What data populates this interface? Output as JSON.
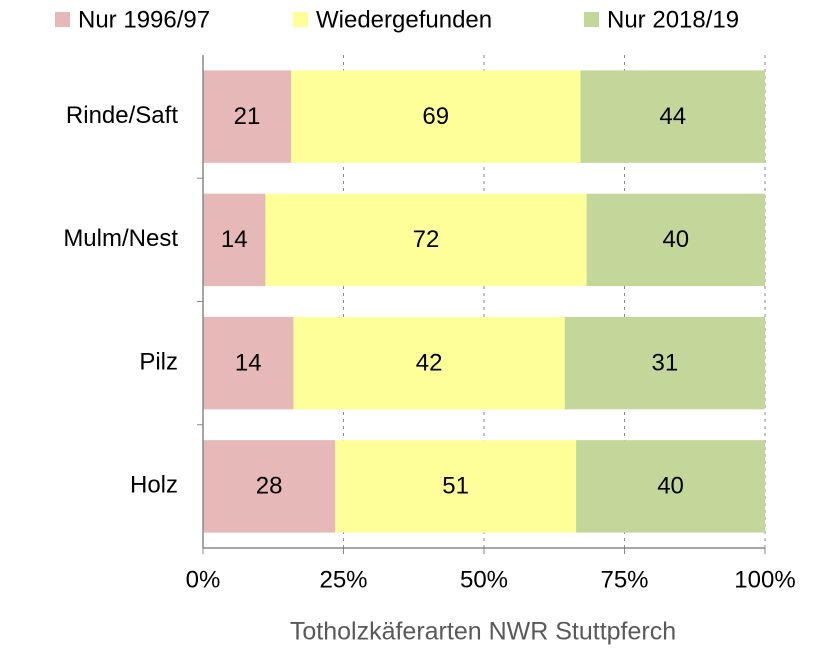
{
  "chart_data": {
    "type": "bar",
    "orientation": "horizontal",
    "stacking": "percent",
    "title": "Totholzkäferarten NWR Stuttpferch",
    "categories": [
      "Rinde/Saft",
      "Mulm/Nest",
      "Pilz",
      "Holz"
    ],
    "series": [
      {
        "name": "Nur 1996/97",
        "color": "#e6b8b7",
        "values": [
          21,
          14,
          14,
          28
        ]
      },
      {
        "name": "Wiedergefunden",
        "color": "#ffff99",
        "values": [
          69,
          72,
          42,
          51
        ]
      },
      {
        "name": "Nur 2018/19",
        "color": "#c4d79b",
        "values": [
          44,
          40,
          31,
          40
        ]
      }
    ],
    "xlim": [
      0,
      100
    ],
    "xticks": [
      {
        "value": 0,
        "label": "0%"
      },
      {
        "value": 25,
        "label": "25%"
      },
      {
        "value": 50,
        "label": "50%"
      },
      {
        "value": 75,
        "label": "75%"
      },
      {
        "value": 100,
        "label": "100%"
      }
    ],
    "grid": true,
    "legend": "top"
  }
}
